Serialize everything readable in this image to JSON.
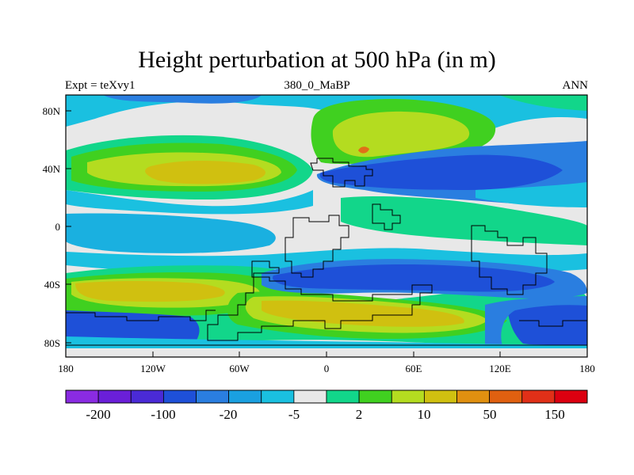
{
  "title": "Height perturbation at 500 hPa (in m)",
  "subtitle_left": "Expt = teXvy1",
  "subtitle_center": "380_0_MaBP",
  "subtitle_right": "ANN",
  "axes": {
    "x_ticks": [
      "180",
      "120W",
      "60W",
      "0",
      "60E",
      "120E",
      "180"
    ],
    "y_ticks": [
      "80N",
      "40N",
      "0",
      "40S",
      "80S"
    ]
  },
  "colorbar": {
    "colors": [
      "#8a2be2",
      "#6a1fd8",
      "#4a2ad6",
      "#1e50d8",
      "#2a7ee0",
      "#1aa0e0",
      "#1ac0e0",
      "#e8e8e8",
      "#12d68a",
      "#40d020",
      "#b4dc20",
      "#d0c010",
      "#e09010",
      "#e06010",
      "#e03018",
      "#dc0010"
    ],
    "labels": [
      "-200",
      "-100",
      "-20",
      "-5",
      "2",
      "10",
      "50",
      "150"
    ]
  },
  "palette": {
    "background": "#e8e8e8",
    "deep_blue": "#1e50d8",
    "mid_blue": "#2a7ee0",
    "light_blue": "#1ab0e0",
    "green": "#12d68a",
    "bright_green": "#40d020",
    "yellow_green": "#b4dc20",
    "yellow": "#d0c010",
    "orange": "#e07018"
  }
}
